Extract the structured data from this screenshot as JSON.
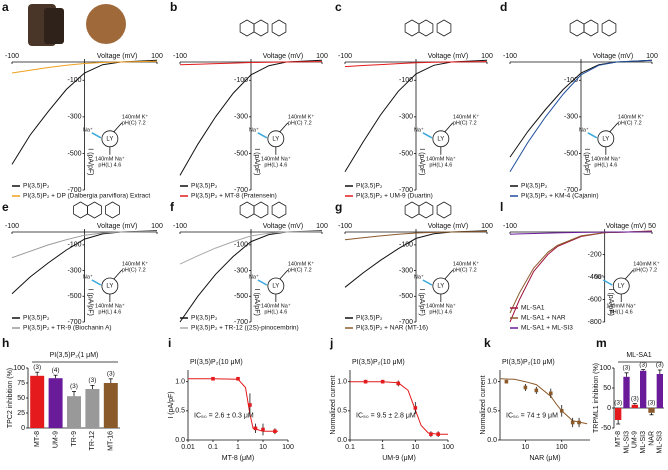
{
  "schematic": {
    "cyto": [
      "140mM K⁺",
      "pH(C) 7.2"
    ],
    "lumen": [
      "140mM Na⁺",
      "pH(L) 4.6"
    ],
    "ion": "Na⁺",
    "organelle": "LY"
  },
  "chart_data": [
    {
      "type": "iv",
      "letter": "a",
      "xlabel": "Voltage (mV)",
      "ylabel": "I (pA/pF)",
      "xlim": [
        -100,
        100
      ],
      "ylim": [
        -700,
        0
      ],
      "xticks": [
        -100,
        100
      ],
      "yticks": [
        -100,
        -300,
        -500,
        -700
      ],
      "x": [
        -100,
        -75,
        -50,
        -25,
        0,
        25,
        50,
        75,
        100
      ],
      "series": [
        {
          "name": "PI(3,5)P₂",
          "color": "#111111",
          "values": [
            -560,
            -400,
            -270,
            -150,
            -60,
            -15,
            0,
            5,
            10
          ]
        },
        {
          "name": "PI(3,5)P₂ + DP (Dalbergia parviflora) Extract",
          "color": "#f0a020",
          "values": [
            -60,
            -45,
            -30,
            -18,
            -8,
            -3,
            0,
            2,
            4
          ]
        }
      ]
    },
    {
      "type": "iv",
      "letter": "b",
      "xlabel": "Voltage (mV)",
      "ylabel": "I (pA/pF)",
      "xlim": [
        -100,
        100
      ],
      "ylim": [
        -700,
        0
      ],
      "xticks": [
        -100,
        100
      ],
      "yticks": [
        -100,
        -300,
        -500,
        -700
      ],
      "x": [
        -100,
        -75,
        -50,
        -25,
        0,
        25,
        50,
        75,
        100
      ],
      "series": [
        {
          "name": "PI(3,5)P₂",
          "color": "#111111",
          "values": [
            -620,
            -450,
            -300,
            -170,
            -70,
            -20,
            0,
            5,
            10
          ]
        },
        {
          "name": "PI(3,5)P₂ + MT-8 (Pratensein)",
          "color": "#e41a1c",
          "values": [
            -15,
            -12,
            -9,
            -6,
            -3,
            -1,
            0,
            1,
            2
          ]
        }
      ]
    },
    {
      "type": "iv",
      "letter": "c",
      "xlabel": "Voltage (mV)",
      "ylabel": "I (pA/pF)",
      "xlim": [
        -100,
        100
      ],
      "ylim": [
        -700,
        0
      ],
      "xticks": [
        -100,
        100
      ],
      "yticks": [
        -100,
        -300,
        -500,
        -700
      ],
      "x": [
        -100,
        -75,
        -50,
        -25,
        0,
        25,
        50,
        75,
        100
      ],
      "series": [
        {
          "name": "PI(3,5)P₂",
          "color": "#111111",
          "values": [
            -600,
            -440,
            -290,
            -160,
            -65,
            -18,
            0,
            5,
            10
          ]
        },
        {
          "name": "PI(3,5)P₂ + UM-9 (Duartin)",
          "color": "#e41a1c",
          "values": [
            -25,
            -19,
            -14,
            -9,
            -4,
            -1,
            0,
            1,
            2
          ]
        }
      ]
    },
    {
      "type": "iv",
      "letter": "d",
      "xlabel": "Voltage (mV)",
      "ylabel": "I (pA/pF)",
      "xlim": [
        -100,
        100
      ],
      "ylim": [
        -700,
        0
      ],
      "xticks": [
        -100,
        100
      ],
      "yticks": [
        -100,
        -300,
        -500,
        -700
      ],
      "x": [
        -100,
        -75,
        -50,
        -25,
        0,
        25,
        50,
        75,
        100
      ],
      "series": [
        {
          "name": "PI(3,5)P₂",
          "color": "#111111",
          "values": [
            -520,
            -380,
            -260,
            -150,
            -60,
            -15,
            0,
            5,
            10
          ]
        },
        {
          "name": "PI(3,5)P₂ + KM-4 (Cajanin)",
          "color": "#1f4e9c",
          "values": [
            -600,
            -440,
            -300,
            -175,
            -70,
            -18,
            0,
            5,
            10
          ]
        }
      ]
    },
    {
      "type": "iv",
      "letter": "e",
      "xlabel": "Voltage (mV)",
      "ylabel": "I (pA/pF)",
      "xlim": [
        -100,
        100
      ],
      "ylim": [
        -700,
        0
      ],
      "xticks": [
        -100,
        100
      ],
      "yticks": [
        -100,
        -300,
        -500,
        -700
      ],
      "x": [
        -100,
        -75,
        -50,
        -25,
        0,
        25,
        50,
        75,
        100
      ],
      "series": [
        {
          "name": "PI(3,5)P₂",
          "color": "#111111",
          "values": [
            -480,
            -350,
            -240,
            -140,
            -55,
            -15,
            0,
            5,
            10
          ]
        },
        {
          "name": "PI(3,5)P₂ + TR-9 (Biochanin A)",
          "color": "#999999",
          "values": [
            -200,
            -150,
            -100,
            -60,
            -25,
            -8,
            0,
            2,
            4
          ]
        }
      ]
    },
    {
      "type": "iv",
      "letter": "f",
      "xlabel": "Voltage (mV)",
      "ylabel": "I (pA/pF)",
      "xlim": [
        -100,
        100
      ],
      "ylim": [
        -700,
        0
      ],
      "xticks": [
        -100,
        100
      ],
      "yticks": [
        -100,
        -300,
        -500,
        -700
      ],
      "x": [
        -100,
        -75,
        -50,
        -25,
        0,
        25,
        50,
        75,
        100
      ],
      "series": [
        {
          "name": "PI(3,5)P₂",
          "color": "#111111",
          "values": [
            -700,
            -500,
            -330,
            -190,
            -75,
            -20,
            0,
            5,
            10
          ]
        },
        {
          "name": "PI(3,5)P₂ + TR-12 ((2S)-pinocembrin)",
          "color": "#aaaaaa",
          "values": [
            -250,
            -185,
            -125,
            -75,
            -30,
            -9,
            0,
            2,
            4
          ]
        }
      ]
    },
    {
      "type": "iv",
      "letter": "g",
      "xlabel": "Voltage (mV)",
      "ylabel": "I (pA/pF)",
      "xlim": [
        -100,
        100
      ],
      "ylim": [
        -700,
        0
      ],
      "xticks": [
        -100,
        100
      ],
      "yticks": [
        -100,
        -300,
        -500,
        -700
      ],
      "x": [
        -100,
        -75,
        -50,
        -25,
        0,
        25,
        50,
        75,
        100
      ],
      "series": [
        {
          "name": "PI(3,5)P₂",
          "color": "#111111",
          "values": [
            -430,
            -320,
            -220,
            -130,
            -50,
            -14,
            0,
            5,
            10
          ]
        },
        {
          "name": "PI(3,5)P₂ + NAR (MT-16)",
          "color": "#8b5a2b",
          "values": [
            -60,
            -45,
            -30,
            -18,
            -8,
            -3,
            0,
            2,
            4
          ]
        }
      ]
    },
    {
      "type": "iv",
      "letter": "l",
      "xlabel": "Voltage (mV)",
      "ylabel": "I (pA/pF)",
      "xlim": [
        -100,
        50
      ],
      "ylim": [
        -800,
        0
      ],
      "xticks": [
        -100,
        50
      ],
      "yticks": [
        -200,
        -400,
        -600,
        -800
      ],
      "x": [
        -100,
        -90,
        -75,
        -60,
        -50,
        -25,
        0,
        25,
        50
      ],
      "series": [
        {
          "name": "ML-SA1",
          "color": "#a0153e",
          "values": [
            -800,
            -600,
            -350,
            -200,
            -130,
            -40,
            -5,
            0,
            10
          ]
        },
        {
          "name": "ML-SA1 + NAR",
          "color": "#8b5a2b",
          "values": [
            -720,
            -540,
            -320,
            -180,
            -120,
            -35,
            -5,
            0,
            8
          ]
        },
        {
          "name": "ML-SA1 + ML-SI3",
          "color": "#6a1b9a",
          "values": [
            -20,
            -17,
            -13,
            -10,
            -8,
            -4,
            -1,
            0,
            2
          ]
        }
      ]
    },
    {
      "type": "bar",
      "letter": "h",
      "title": "PI(3,5)P₂(1 μM)",
      "ylabel": "TPC2 inhibition (%)",
      "ylim": [
        0,
        100
      ],
      "yticks": [
        0,
        25,
        50,
        75,
        100
      ],
      "categories": [
        "MT-8",
        "UM-9",
        "TR-9",
        "TR-12",
        "MT-16"
      ],
      "values": [
        87,
        83,
        53,
        65,
        75
      ],
      "errors": [
        6,
        5,
        8,
        6,
        7
      ],
      "colors": [
        "#e41a1c",
        "#6a1b9a",
        "#999999",
        "#999999",
        "#8b5a2b"
      ],
      "n_labels": [
        "(3)",
        "(4)",
        "(3)",
        "(3)",
        "(3)"
      ]
    },
    {
      "type": "dose",
      "letter": "i",
      "title": "PI(3,5)P₂(10 μM)",
      "ylabel": "I (pA/pF)",
      "xlabel": "MT-8 (μM)",
      "annotation": "IC₅₀ = 2.6 ± 0.3 μM",
      "color": "#e41a1c",
      "log_x": true,
      "xlim": [
        0.01,
        100
      ],
      "xticks": [
        0.01,
        0.1,
        1,
        10,
        100
      ],
      "ylim": [
        0,
        1.2
      ],
      "yticks": [
        {
          "value": 0,
          "label": "0.0"
        },
        {
          "value": 0.5,
          "label": "0.5"
        },
        {
          "value": 1,
          "label": "1.0"
        }
      ],
      "x": [
        0.1,
        1,
        3,
        5,
        10,
        30
      ],
      "values": [
        1.05,
        1.05,
        0.6,
        0.2,
        0.18,
        0.15
      ],
      "errors": [
        0.03,
        0.03,
        0.2,
        0.08,
        0.1,
        0.05
      ],
      "fit": {
        "x": [
          0.01,
          0.1,
          1,
          2,
          2.6,
          3,
          4,
          10,
          40
        ],
        "values": [
          1.05,
          1.05,
          1.04,
          0.9,
          0.6,
          0.45,
          0.2,
          0.15,
          0.15
        ]
      }
    },
    {
      "type": "dose",
      "letter": "j",
      "title": "PI(3,5)P₂(10 μM)",
      "ylabel": "Normalized current",
      "xlabel": "UM-9 (μM)",
      "annotation": "IC₅₀ = 9.5 ± 2.8 μM",
      "color": "#e41a1c",
      "log_x": true,
      "xlim": [
        0.1,
        100
      ],
      "xticks": [
        0.1,
        1,
        10,
        100
      ],
      "ylim": [
        0,
        1.2
      ],
      "yticks": [
        {
          "value": 0,
          "label": "0.0"
        },
        {
          "value": 0.5,
          "label": "0.5"
        },
        {
          "value": 1,
          "label": "1.0"
        }
      ],
      "x": [
        0.3,
        1,
        3,
        10,
        30,
        50
      ],
      "values": [
        1.0,
        1.0,
        0.97,
        0.55,
        0.1,
        0.1
      ],
      "errors": [
        0.03,
        0.03,
        0.05,
        0.1,
        0.05,
        0.05
      ],
      "fit": {
        "x": [
          0.1,
          1,
          3,
          6,
          9.5,
          15,
          25,
          50,
          100
        ],
        "values": [
          1.0,
          1.0,
          0.98,
          0.85,
          0.55,
          0.25,
          0.12,
          0.1,
          0.1
        ]
      }
    },
    {
      "type": "dose",
      "letter": "k",
      "title": "PI(3,5)P₂(10 μM)",
      "ylabel": "Normalized current",
      "xlabel": "NAR (μM)",
      "annotation": "IC₅₀ = 74 ± 9 μM",
      "color": "#8b5a2b",
      "log_x": true,
      "xlim": [
        2,
        600
      ],
      "xticks": [
        10,
        100
      ],
      "ylim": [
        0,
        1.2
      ],
      "yticks": [
        {
          "value": 0,
          "label": "0.0"
        },
        {
          "value": 0.5,
          "label": "0.5"
        },
        {
          "value": 1,
          "label": "1.0"
        }
      ],
      "x": [
        3,
        10,
        20,
        50,
        100,
        200,
        300
      ],
      "values": [
        1.0,
        0.9,
        0.85,
        0.8,
        0.5,
        0.3,
        0.3
      ],
      "errors": [
        0.03,
        0.06,
        0.06,
        0.08,
        0.1,
        0.08,
        0.08
      ],
      "fit": {
        "x": [
          2,
          5,
          10,
          20,
          50,
          74,
          100,
          200,
          500
        ],
        "values": [
          1.05,
          1.04,
          1.0,
          0.95,
          0.75,
          0.6,
          0.5,
          0.33,
          0.28
        ]
      }
    },
    {
      "type": "bar",
      "letter": "m",
      "title": "ML-SA1",
      "ylabel": "TRPML1 inhibition (%)",
      "ylim": [
        -50,
        100
      ],
      "yticks": [
        -50,
        0,
        50,
        100
      ],
      "categories": [
        "MT-8",
        "ML-SI3",
        "UM-9",
        "ML-SI3",
        "NAR",
        "ML-SI3"
      ],
      "values": [
        -30,
        78,
        8,
        93,
        -12,
        85
      ],
      "errors": [
        10,
        10,
        3,
        3,
        5,
        10
      ],
      "colors": [
        "#e41a1c",
        "#6a1b9a",
        "#e41a1c",
        "#6a1b9a",
        "#8b5a2b",
        "#6a1b9a"
      ],
      "n_labels": [
        "(3)",
        "(3)",
        "(3)",
        "(3)",
        "(3)",
        "(3)"
      ]
    }
  ]
}
